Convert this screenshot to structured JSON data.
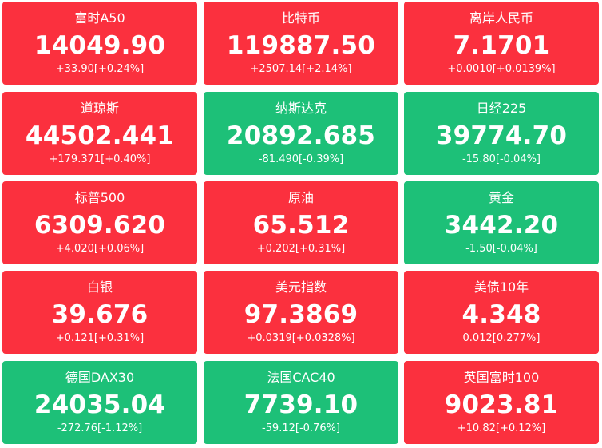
{
  "colors": {
    "up": "#fb303e",
    "down": "#1dc078"
  },
  "tiles": [
    {
      "name": "富时A50",
      "price": "14049.90",
      "change": "+33.90[+0.24%]",
      "direction": "up"
    },
    {
      "name": "比特币",
      "price": "119887.50",
      "change": "+2507.14[+2.14%]",
      "direction": "up"
    },
    {
      "name": "离岸人民币",
      "price": "7.1701",
      "change": "+0.0010[+0.0139%]",
      "direction": "up"
    },
    {
      "name": "道琼斯",
      "price": "44502.441",
      "change": "+179.371[+0.40%]",
      "direction": "up"
    },
    {
      "name": "纳斯达克",
      "price": "20892.685",
      "change": "-81.490[-0.39%]",
      "direction": "down"
    },
    {
      "name": "日经225",
      "price": "39774.70",
      "change": "-15.80[-0.04%]",
      "direction": "down"
    },
    {
      "name": "标普500",
      "price": "6309.620",
      "change": "+4.020[+0.06%]",
      "direction": "up"
    },
    {
      "name": "原油",
      "price": "65.512",
      "change": "+0.202[+0.31%]",
      "direction": "up"
    },
    {
      "name": "黄金",
      "price": "3442.20",
      "change": "-1.50[-0.04%]",
      "direction": "down"
    },
    {
      "name": "白银",
      "price": "39.676",
      "change": "+0.121[+0.31%]",
      "direction": "up"
    },
    {
      "name": "美元指数",
      "price": "97.3869",
      "change": "+0.0319[+0.0328%]",
      "direction": "up"
    },
    {
      "name": "美债10年",
      "price": "4.348",
      "change": "0.012[0.277%]",
      "direction": "up"
    },
    {
      "name": "德国DAX30",
      "price": "24035.04",
      "change": "-272.76[-1.12%]",
      "direction": "down"
    },
    {
      "name": "法国CAC40",
      "price": "7739.10",
      "change": "-59.12[-0.76%]",
      "direction": "down"
    },
    {
      "name": "英国富时100",
      "price": "9023.81",
      "change": "+10.82[+0.12%]",
      "direction": "up"
    }
  ]
}
